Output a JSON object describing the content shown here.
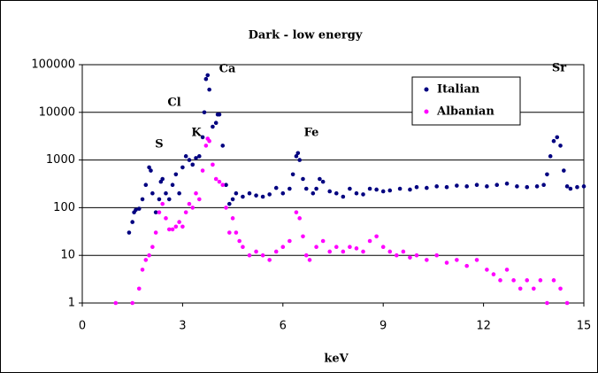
{
  "chart_data": {
    "type": "scatter",
    "title": "Dark - low energy",
    "x_label": "keV",
    "xlim": [
      0,
      15
    ],
    "xticks": [
      0,
      3,
      6,
      9,
      12,
      15
    ],
    "ylim": [
      1,
      100000
    ],
    "yticks": [
      1,
      10,
      100,
      1000,
      10000,
      100000
    ],
    "y_log_scale": true,
    "grid": true,
    "legend_position": "top-right",
    "annotations": [
      "S",
      "Cl",
      "K",
      "Ca",
      "Fe",
      "Sr"
    ],
    "series": [
      {
        "name": "Italian",
        "color": "#000080",
        "x": [
          1.4,
          1.5,
          1.55,
          1.6,
          1.7,
          1.8,
          1.9,
          2.0,
          2.05,
          2.1,
          2.2,
          2.3,
          2.35,
          2.4,
          2.5,
          2.6,
          2.7,
          2.8,
          2.9,
          3.0,
          3.1,
          3.2,
          3.3,
          3.4,
          3.5,
          3.6,
          3.65,
          3.7,
          3.75,
          3.8,
          3.9,
          4.0,
          4.05,
          4.1,
          4.2,
          4.3,
          4.4,
          4.5,
          4.6,
          4.8,
          5.0,
          5.2,
          5.4,
          5.6,
          5.8,
          6.0,
          6.2,
          6.3,
          6.4,
          6.45,
          6.5,
          6.6,
          6.7,
          6.9,
          7.0,
          7.1,
          7.2,
          7.4,
          7.6,
          7.8,
          8.0,
          8.2,
          8.4,
          8.6,
          8.8,
          9.0,
          9.2,
          9.5,
          9.8,
          10.0,
          10.3,
          10.6,
          10.9,
          11.2,
          11.5,
          11.8,
          12.1,
          12.4,
          12.7,
          13.0,
          13.3,
          13.6,
          13.8,
          13.9,
          14.0,
          14.1,
          14.2,
          14.3,
          14.4,
          14.5,
          14.6,
          14.8,
          15.0
        ],
        "values": [
          30,
          50,
          80,
          90,
          95,
          150,
          300,
          700,
          600,
          200,
          80,
          150,
          350,
          400,
          200,
          150,
          300,
          500,
          200,
          700,
          1200,
          1000,
          800,
          1100,
          1200,
          3000,
          10000,
          50000,
          60000,
          30000,
          5000,
          6000,
          9000,
          9000,
          2000,
          300,
          120,
          150,
          200,
          170,
          200,
          180,
          170,
          190,
          260,
          200,
          250,
          500,
          1200,
          1400,
          1000,
          400,
          250,
          200,
          250,
          400,
          350,
          220,
          200,
          170,
          250,
          200,
          190,
          250,
          240,
          220,
          230,
          250,
          240,
          270,
          260,
          280,
          270,
          290,
          280,
          300,
          280,
          300,
          320,
          280,
          270,
          280,
          300,
          500,
          1200,
          2500,
          3000,
          2000,
          600,
          280,
          250,
          270,
          280
        ]
      },
      {
        "name": "Albanian",
        "color": "#ff00ff",
        "x": [
          1.0,
          1.5,
          1.7,
          1.8,
          1.9,
          2.0,
          2.1,
          2.2,
          2.3,
          2.4,
          2.5,
          2.6,
          2.7,
          2.8,
          2.9,
          3.0,
          3.1,
          3.2,
          3.3,
          3.4,
          3.5,
          3.6,
          3.7,
          3.75,
          3.8,
          3.9,
          4.0,
          4.1,
          4.2,
          4.3,
          4.4,
          4.5,
          4.6,
          4.7,
          4.8,
          5.0,
          5.2,
          5.4,
          5.6,
          5.8,
          6.0,
          6.2,
          6.4,
          6.5,
          6.6,
          6.7,
          6.8,
          7.0,
          7.2,
          7.4,
          7.6,
          7.8,
          8.0,
          8.2,
          8.4,
          8.6,
          8.8,
          9.0,
          9.2,
          9.4,
          9.6,
          9.8,
          10.0,
          10.3,
          10.6,
          10.9,
          11.2,
          11.5,
          11.8,
          12.1,
          12.3,
          12.5,
          12.7,
          12.9,
          13.1,
          13.3,
          13.5,
          13.7,
          13.9,
          14.1,
          14.3,
          14.5
        ],
        "values": [
          1,
          1,
          2,
          5,
          8,
          10,
          15,
          30,
          80,
          120,
          60,
          35,
          35,
          40,
          50,
          40,
          80,
          120,
          100,
          200,
          150,
          600,
          2000,
          2800,
          2500,
          800,
          400,
          350,
          300,
          100,
          30,
          60,
          30,
          20,
          15,
          10,
          12,
          10,
          8,
          12,
          15,
          20,
          80,
          60,
          25,
          10,
          8,
          15,
          20,
          12,
          15,
          12,
          15,
          14,
          12,
          20,
          25,
          15,
          12,
          10,
          12,
          9,
          10,
          8,
          10,
          7,
          8,
          6,
          8,
          5,
          4,
          3,
          5,
          3,
          2,
          3,
          2,
          3,
          1,
          3,
          2,
          1
        ]
      }
    ]
  }
}
